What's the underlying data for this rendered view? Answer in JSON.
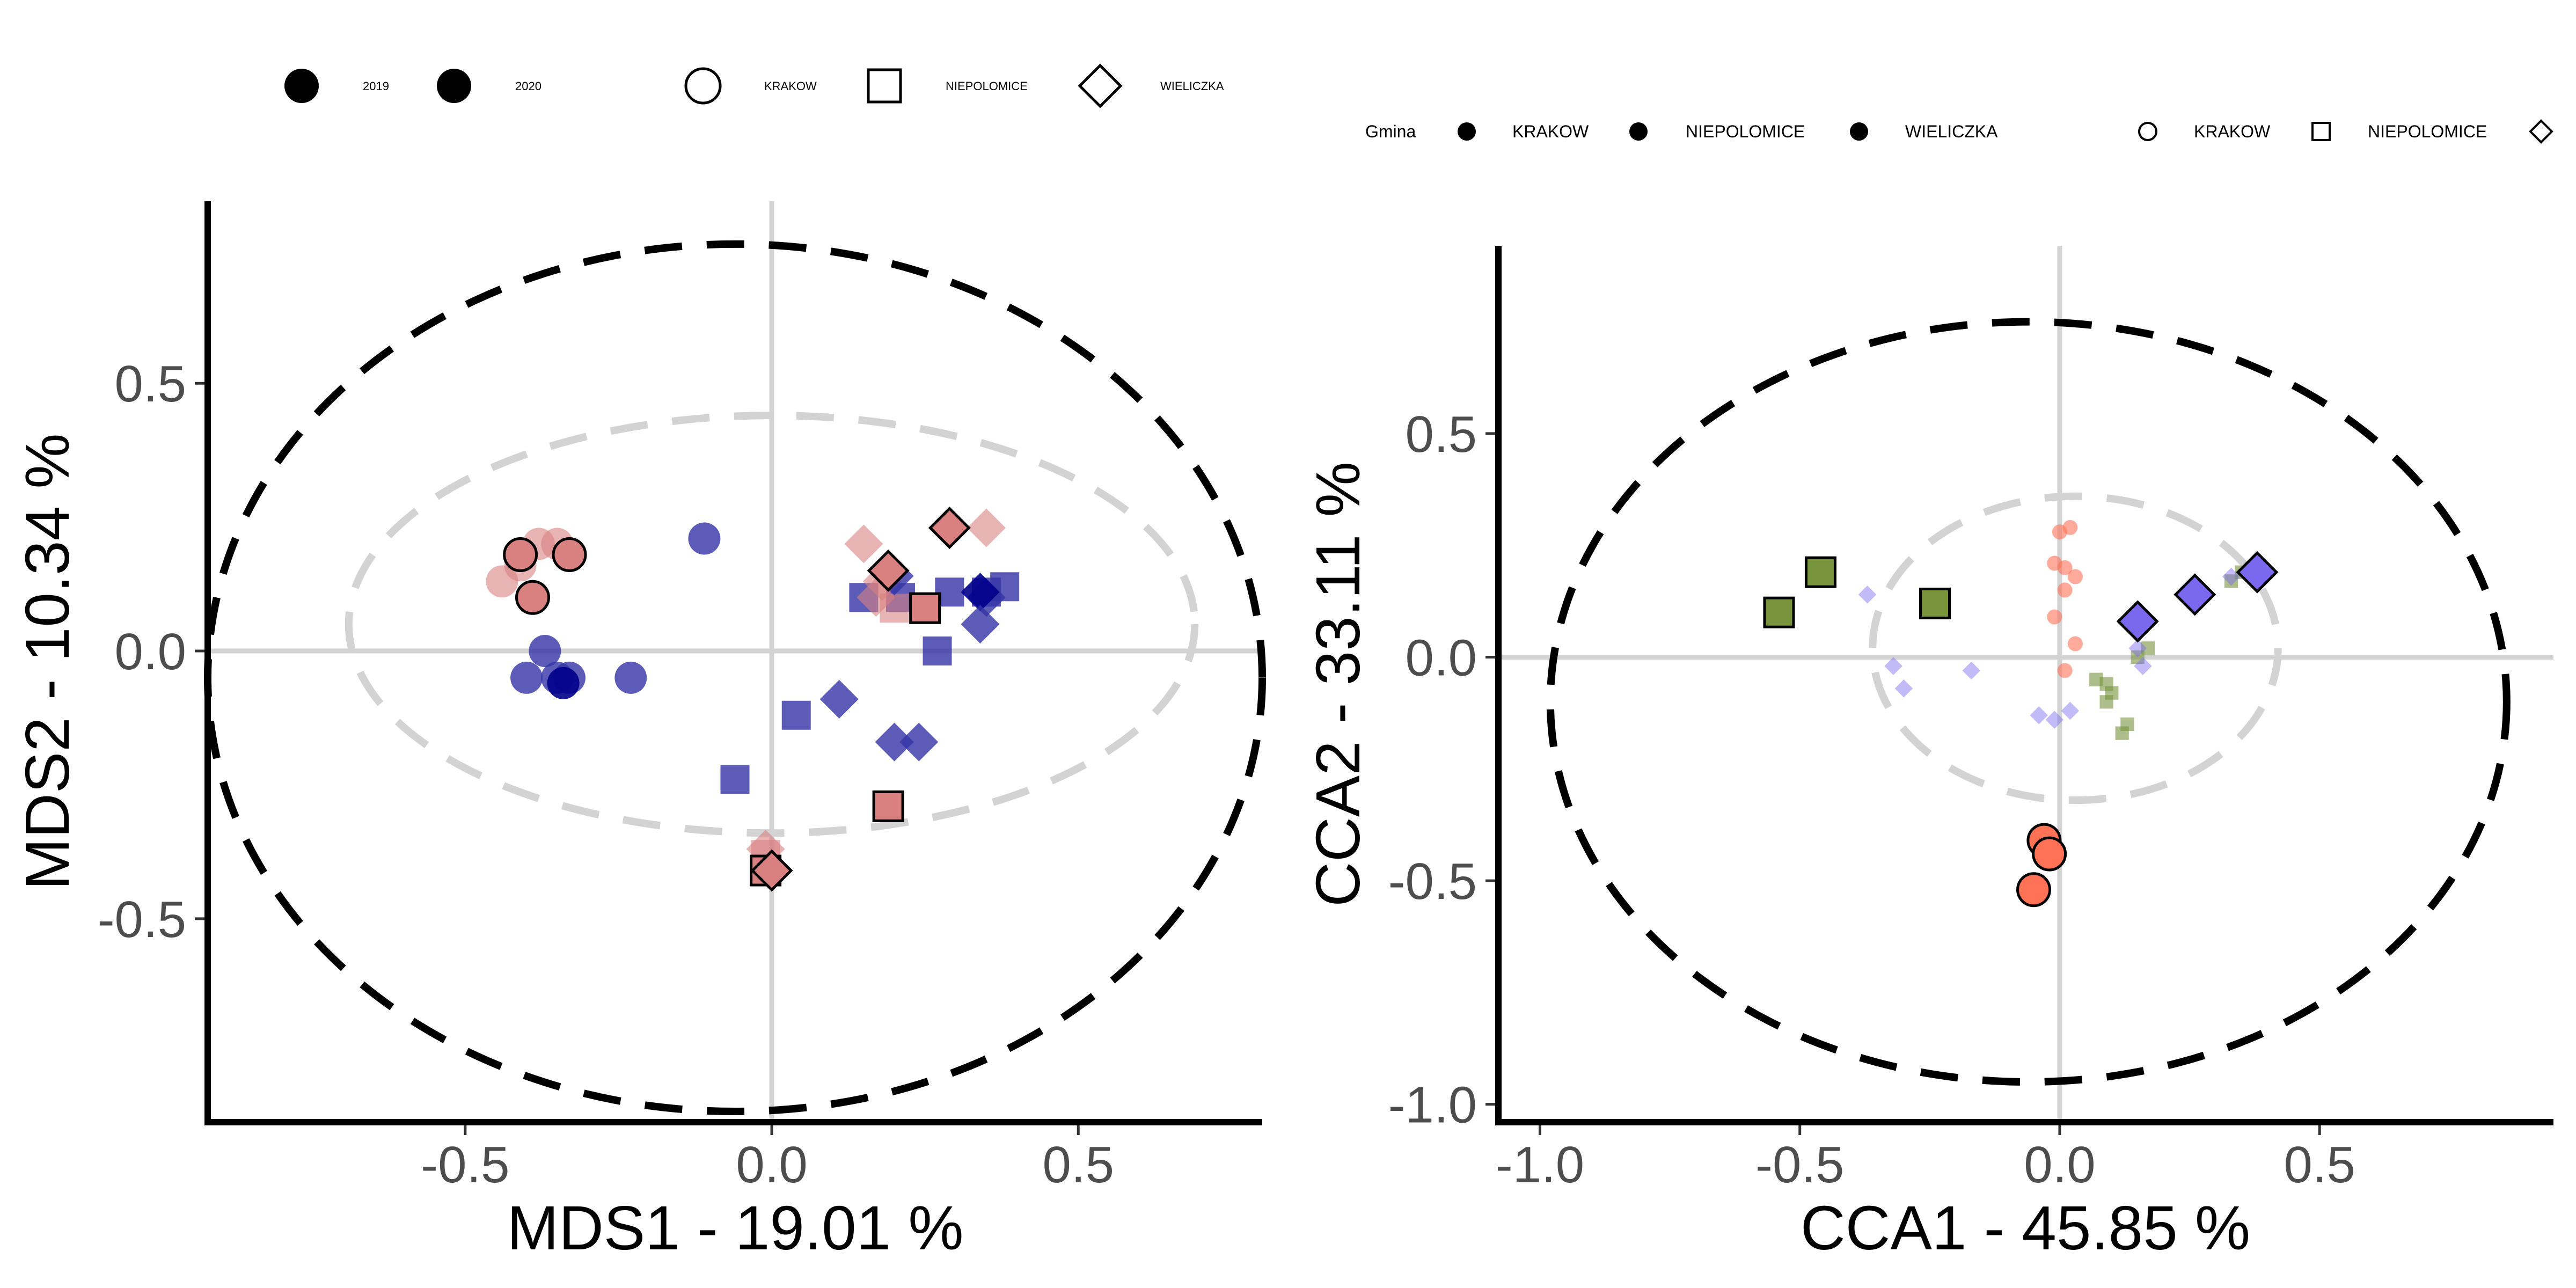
{
  "chart_data": [
    {
      "type": "scatter",
      "xlabel": "MDS1 - 19.01 %",
      "ylabel": "MDS2 - 10.34 %",
      "xlim": [
        -0.92,
        0.8
      ],
      "ylim": [
        -0.88,
        0.84
      ],
      "xticks": [
        -0.5,
        0.0,
        0.5
      ],
      "yticks": [
        -0.5,
        0.0,
        0.5
      ],
      "xtick_labels": [
        "-0.5",
        "0.0",
        "0.5"
      ],
      "ytick_labels": [
        "-0.5",
        "0.0",
        "0.5"
      ],
      "grid": false,
      "reference_lines": {
        "x": 0,
        "y": 0,
        "color": "#d3d3d3"
      },
      "legend": {
        "placement": "top",
        "year_entries": [
          "2019",
          "2020"
        ],
        "site_entries": [
          "KRAKOW",
          "NIEPOLOMICE",
          "WIELICZKA"
        ]
      },
      "ellipses": [
        {
          "cx": -0.06,
          "cy": -0.05,
          "rx": 0.86,
          "ry": 0.81,
          "color": "#000000",
          "style": "dashed"
        },
        {
          "cx": 0.0,
          "cy": 0.05,
          "rx": 0.69,
          "ry": 0.39,
          "color": "#d3d3d3",
          "style": "dashed"
        }
      ],
      "points": [
        {
          "x": -0.44,
          "y": 0.13,
          "shape": "circle",
          "color": "#d98080",
          "opacity": 0.6,
          "outline": false
        },
        {
          "x": -0.41,
          "y": 0.16,
          "shape": "circle",
          "color": "#d98080",
          "opacity": 0.6,
          "outline": false
        },
        {
          "x": -0.38,
          "y": 0.2,
          "shape": "circle",
          "color": "#d98080",
          "opacity": 0.6,
          "outline": false
        },
        {
          "x": -0.35,
          "y": 0.2,
          "shape": "circle",
          "color": "#d98080",
          "opacity": 0.6,
          "outline": false
        },
        {
          "x": -0.11,
          "y": 0.21,
          "shape": "circle",
          "color": "#3333a6",
          "opacity": 0.8,
          "outline": false
        },
        {
          "x": -0.37,
          "y": 0.0,
          "shape": "circle",
          "color": "#3333a6",
          "opacity": 0.8,
          "outline": false
        },
        {
          "x": -0.4,
          "y": -0.05,
          "shape": "circle",
          "color": "#3333a6",
          "opacity": 0.8,
          "outline": false
        },
        {
          "x": -0.35,
          "y": -0.05,
          "shape": "circle",
          "color": "#3333a6",
          "opacity": 0.8,
          "outline": false
        },
        {
          "x": -0.33,
          "y": -0.05,
          "shape": "circle",
          "color": "#3333a6",
          "opacity": 0.8,
          "outline": false
        },
        {
          "x": -0.34,
          "y": -0.06,
          "shape": "circle",
          "color": "#00008b",
          "opacity": 0.9,
          "outline": false
        },
        {
          "x": -0.23,
          "y": -0.05,
          "shape": "circle",
          "color": "#3333a6",
          "opacity": 0.8,
          "outline": false
        },
        {
          "x": -0.41,
          "y": 0.18,
          "shape": "circle",
          "color": "#d98080",
          "opacity": 1.0,
          "outline": true
        },
        {
          "x": -0.33,
          "y": 0.18,
          "shape": "circle",
          "color": "#d98080",
          "opacity": 1.0,
          "outline": true
        },
        {
          "x": -0.39,
          "y": 0.1,
          "shape": "circle",
          "color": "#d98080",
          "opacity": 1.0,
          "outline": true
        },
        {
          "x": 0.15,
          "y": 0.1,
          "shape": "square",
          "color": "#3333a6",
          "opacity": 0.8,
          "outline": false
        },
        {
          "x": 0.21,
          "y": 0.1,
          "shape": "square",
          "color": "#3333a6",
          "opacity": 0.8,
          "outline": false
        },
        {
          "x": 0.29,
          "y": 0.11,
          "shape": "square",
          "color": "#3333a6",
          "opacity": 0.8,
          "outline": false
        },
        {
          "x": 0.35,
          "y": 0.11,
          "shape": "square",
          "color": "#3333a6",
          "opacity": 0.8,
          "outline": false
        },
        {
          "x": 0.38,
          "y": 0.12,
          "shape": "square",
          "color": "#3333a6",
          "opacity": 0.8,
          "outline": false
        },
        {
          "x": 0.27,
          "y": 0.0,
          "shape": "square",
          "color": "#3333a6",
          "opacity": 0.8,
          "outline": false
        },
        {
          "x": 0.04,
          "y": -0.12,
          "shape": "square",
          "color": "#3333a6",
          "opacity": 0.8,
          "outline": false
        },
        {
          "x": -0.06,
          "y": -0.24,
          "shape": "square",
          "color": "#3333a6",
          "opacity": 0.8,
          "outline": false
        },
        {
          "x": 0.2,
          "y": 0.08,
          "shape": "square",
          "color": "#d98080",
          "opacity": 0.6,
          "outline": false
        },
        {
          "x": -0.01,
          "y": -0.38,
          "shape": "square",
          "color": "#d98080",
          "opacity": 0.6,
          "outline": false
        },
        {
          "x": 0.25,
          "y": 0.08,
          "shape": "square",
          "color": "#d98080",
          "opacity": 1.0,
          "outline": true
        },
        {
          "x": 0.19,
          "y": -0.29,
          "shape": "square",
          "color": "#d98080",
          "opacity": 1.0,
          "outline": true
        },
        {
          "x": -0.01,
          "y": -0.41,
          "shape": "square",
          "color": "#d98080",
          "opacity": 1.0,
          "outline": true
        },
        {
          "x": 0.15,
          "y": 0.2,
          "shape": "diamond",
          "color": "#d98080",
          "opacity": 0.6,
          "outline": false
        },
        {
          "x": 0.18,
          "y": 0.13,
          "shape": "diamond",
          "color": "#d98080",
          "opacity": 0.6,
          "outline": false
        },
        {
          "x": 0.35,
          "y": 0.23,
          "shape": "diamond",
          "color": "#d98080",
          "opacity": 0.6,
          "outline": false
        },
        {
          "x": 0.17,
          "y": 0.1,
          "shape": "diamond",
          "color": "#d98080",
          "opacity": 0.6,
          "outline": false
        },
        {
          "x": -0.01,
          "y": -0.37,
          "shape": "diamond",
          "color": "#d98080",
          "opacity": 0.6,
          "outline": false
        },
        {
          "x": 0.35,
          "y": 0.1,
          "shape": "diamond",
          "color": "#3333a6",
          "opacity": 0.8,
          "outline": false
        },
        {
          "x": 0.34,
          "y": 0.11,
          "shape": "diamond",
          "color": "#00008b",
          "opacity": 0.9,
          "outline": false
        },
        {
          "x": 0.34,
          "y": 0.05,
          "shape": "diamond",
          "color": "#3333a6",
          "opacity": 0.8,
          "outline": false
        },
        {
          "x": 0.11,
          "y": -0.09,
          "shape": "diamond",
          "color": "#3333a6",
          "opacity": 0.8,
          "outline": false
        },
        {
          "x": 0.2,
          "y": -0.17,
          "shape": "diamond",
          "color": "#3333a6",
          "opacity": 0.8,
          "outline": false
        },
        {
          "x": 0.24,
          "y": -0.17,
          "shape": "diamond",
          "color": "#3333a6",
          "opacity": 0.8,
          "outline": false
        },
        {
          "x": 0.2,
          "y": 0.14,
          "shape": "diamond",
          "color": "#3333a6",
          "opacity": 0.8,
          "outline": false
        },
        {
          "x": 0.19,
          "y": 0.15,
          "shape": "diamond",
          "color": "#d98080",
          "opacity": 1.0,
          "outline": true
        },
        {
          "x": 0.29,
          "y": 0.23,
          "shape": "diamond",
          "color": "#d98080",
          "opacity": 1.0,
          "outline": true
        },
        {
          "x": 0.0,
          "y": -0.41,
          "shape": "diamond",
          "color": "#d98080",
          "opacity": 1.0,
          "outline": true
        }
      ]
    },
    {
      "type": "scatter",
      "xlabel": "CCA1 - 45.85 %",
      "ylabel": "CCA2 - 33.11 %",
      "xlim": [
        -1.08,
        0.95
      ],
      "ylim": [
        -1.04,
        0.92
      ],
      "xticks": [
        -1.0,
        -0.5,
        0.0,
        0.5
      ],
      "yticks": [
        -1.0,
        -0.5,
        0.0,
        0.5
      ],
      "xtick_labels": [
        "-1.0",
        "-0.5",
        "0.0",
        "0.5"
      ],
      "ytick_labels": [
        "-1.0",
        "-0.5",
        "0.0",
        "0.5"
      ],
      "grid": false,
      "reference_lines": {
        "x": 0,
        "y": 0,
        "color": "#d3d3d3"
      },
      "legend": {
        "placement": "top",
        "title": "Gmina",
        "fill_entries": [
          "KRAKOW",
          "NIEPOLOMICE",
          "WIELICZKA"
        ],
        "shape_entries": [
          "KRAKOW",
          "NIEPOLOMICE"
        ]
      },
      "ellipses": [
        {
          "cx": -0.06,
          "cy": -0.1,
          "rx": 0.92,
          "ry": 0.85,
          "color": "#000000",
          "style": "dashed"
        },
        {
          "cx": 0.03,
          "cy": 0.02,
          "rx": 0.39,
          "ry": 0.34,
          "color": "#d3d3d3",
          "style": "dashed"
        }
      ],
      "points": [
        {
          "x": -0.54,
          "y": 0.1,
          "shape": "square",
          "color": "#77933c",
          "opacity": 1.0,
          "outline": true,
          "size": "large"
        },
        {
          "x": -0.46,
          "y": 0.19,
          "shape": "square",
          "color": "#77933c",
          "opacity": 1.0,
          "outline": true,
          "size": "large"
        },
        {
          "x": -0.24,
          "y": 0.12,
          "shape": "square",
          "color": "#77933c",
          "opacity": 1.0,
          "outline": true,
          "size": "large"
        },
        {
          "x": 0.15,
          "y": 0.08,
          "shape": "diamond",
          "color": "#7b68ee",
          "opacity": 1.0,
          "outline": true,
          "size": "large"
        },
        {
          "x": 0.26,
          "y": 0.14,
          "shape": "diamond",
          "color": "#7b68ee",
          "opacity": 1.0,
          "outline": true,
          "size": "large"
        },
        {
          "x": 0.38,
          "y": 0.19,
          "shape": "diamond",
          "color": "#7b68ee",
          "opacity": 1.0,
          "outline": true,
          "size": "large"
        },
        {
          "x": -0.03,
          "y": -0.41,
          "shape": "circle",
          "color": "#ff7256",
          "opacity": 1.0,
          "outline": true,
          "size": "large"
        },
        {
          "x": -0.02,
          "y": -0.44,
          "shape": "circle",
          "color": "#ff7256",
          "opacity": 1.0,
          "outline": true,
          "size": "large"
        },
        {
          "x": -0.05,
          "y": -0.52,
          "shape": "circle",
          "color": "#ff7256",
          "opacity": 1.0,
          "outline": true,
          "size": "large"
        },
        {
          "x": 0.0,
          "y": 0.28,
          "shape": "circle",
          "color": "#ff7256",
          "opacity": 0.6,
          "outline": false,
          "size": "small"
        },
        {
          "x": 0.02,
          "y": 0.29,
          "shape": "circle",
          "color": "#ff7256",
          "opacity": 0.6,
          "outline": false,
          "size": "small"
        },
        {
          "x": -0.01,
          "y": 0.21,
          "shape": "circle",
          "color": "#ff7256",
          "opacity": 0.6,
          "outline": false,
          "size": "small"
        },
        {
          "x": 0.01,
          "y": 0.2,
          "shape": "circle",
          "color": "#ff7256",
          "opacity": 0.6,
          "outline": false,
          "size": "small"
        },
        {
          "x": 0.03,
          "y": 0.18,
          "shape": "circle",
          "color": "#ff7256",
          "opacity": 0.6,
          "outline": false,
          "size": "small"
        },
        {
          "x": 0.01,
          "y": 0.15,
          "shape": "circle",
          "color": "#ff7256",
          "opacity": 0.6,
          "outline": false,
          "size": "small"
        },
        {
          "x": -0.01,
          "y": 0.09,
          "shape": "circle",
          "color": "#ff7256",
          "opacity": 0.6,
          "outline": false,
          "size": "small"
        },
        {
          "x": 0.03,
          "y": 0.03,
          "shape": "circle",
          "color": "#ff7256",
          "opacity": 0.6,
          "outline": false,
          "size": "small"
        },
        {
          "x": 0.01,
          "y": -0.03,
          "shape": "circle",
          "color": "#ff7256",
          "opacity": 0.6,
          "outline": false,
          "size": "small"
        },
        {
          "x": 0.33,
          "y": 0.17,
          "shape": "square",
          "color": "#77933c",
          "opacity": 0.6,
          "outline": false,
          "size": "small"
        },
        {
          "x": 0.35,
          "y": 0.19,
          "shape": "square",
          "color": "#77933c",
          "opacity": 0.6,
          "outline": false,
          "size": "small"
        },
        {
          "x": 0.15,
          "y": 0.0,
          "shape": "square",
          "color": "#77933c",
          "opacity": 0.6,
          "outline": false,
          "size": "small"
        },
        {
          "x": 0.17,
          "y": 0.02,
          "shape": "square",
          "color": "#77933c",
          "opacity": 0.6,
          "outline": false,
          "size": "small"
        },
        {
          "x": 0.07,
          "y": -0.05,
          "shape": "square",
          "color": "#77933c",
          "opacity": 0.6,
          "outline": false,
          "size": "small"
        },
        {
          "x": 0.09,
          "y": -0.06,
          "shape": "square",
          "color": "#77933c",
          "opacity": 0.6,
          "outline": false,
          "size": "small"
        },
        {
          "x": 0.1,
          "y": -0.08,
          "shape": "square",
          "color": "#77933c",
          "opacity": 0.6,
          "outline": false,
          "size": "small"
        },
        {
          "x": 0.09,
          "y": -0.1,
          "shape": "square",
          "color": "#77933c",
          "opacity": 0.6,
          "outline": false,
          "size": "small"
        },
        {
          "x": 0.13,
          "y": -0.15,
          "shape": "square",
          "color": "#77933c",
          "opacity": 0.6,
          "outline": false,
          "size": "small"
        },
        {
          "x": 0.12,
          "y": -0.17,
          "shape": "square",
          "color": "#77933c",
          "opacity": 0.6,
          "outline": false,
          "size": "small"
        },
        {
          "x": -0.37,
          "y": 0.14,
          "shape": "diamond",
          "color": "#7b68ee",
          "opacity": 0.45,
          "outline": false,
          "size": "small"
        },
        {
          "x": -0.32,
          "y": -0.02,
          "shape": "diamond",
          "color": "#7b68ee",
          "opacity": 0.45,
          "outline": false,
          "size": "small"
        },
        {
          "x": -0.3,
          "y": -0.07,
          "shape": "diamond",
          "color": "#7b68ee",
          "opacity": 0.45,
          "outline": false,
          "size": "small"
        },
        {
          "x": -0.17,
          "y": -0.03,
          "shape": "diamond",
          "color": "#7b68ee",
          "opacity": 0.45,
          "outline": false,
          "size": "small"
        },
        {
          "x": -0.04,
          "y": -0.13,
          "shape": "diamond",
          "color": "#7b68ee",
          "opacity": 0.45,
          "outline": false,
          "size": "small"
        },
        {
          "x": -0.01,
          "y": -0.14,
          "shape": "diamond",
          "color": "#7b68ee",
          "opacity": 0.45,
          "outline": false,
          "size": "small"
        },
        {
          "x": 0.02,
          "y": -0.12,
          "shape": "diamond",
          "color": "#7b68ee",
          "opacity": 0.45,
          "outline": false,
          "size": "small"
        },
        {
          "x": 0.16,
          "y": -0.02,
          "shape": "diamond",
          "color": "#7b68ee",
          "opacity": 0.45,
          "outline": false,
          "size": "small"
        },
        {
          "x": 0.15,
          "y": 0.02,
          "shape": "diamond",
          "color": "#7b68ee",
          "opacity": 0.45,
          "outline": false,
          "size": "small"
        },
        {
          "x": 0.33,
          "y": 0.18,
          "shape": "diamond",
          "color": "#7b68ee",
          "opacity": 0.45,
          "outline": false,
          "size": "small"
        }
      ]
    }
  ]
}
